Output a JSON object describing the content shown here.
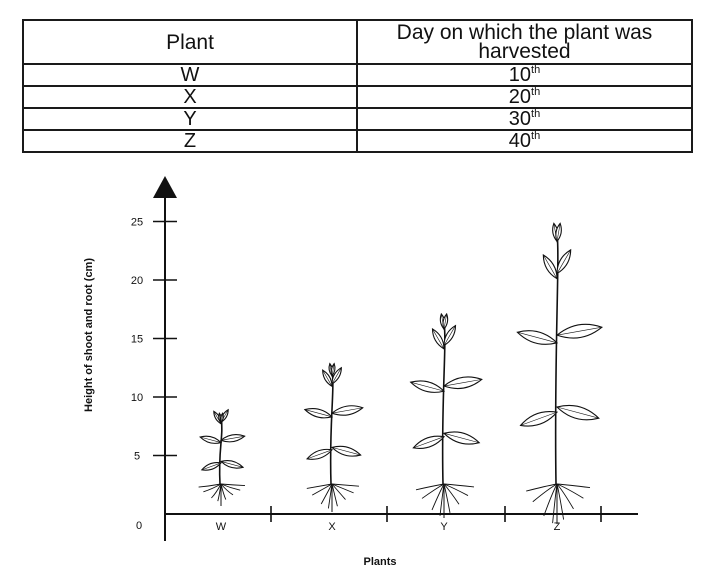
{
  "table": {
    "headers": [
      "Plant",
      "Day on which the plant was harvested"
    ],
    "rows": [
      {
        "plant": "W",
        "day_num": "10",
        "day_sup": "th"
      },
      {
        "plant": "X",
        "day_num": "20",
        "day_sup": "th"
      },
      {
        "plant": "Y",
        "day_num": "30",
        "day_sup": "th"
      },
      {
        "plant": "Z",
        "day_num": "40",
        "day_sup": "th"
      }
    ]
  },
  "figure": {
    "ylabel": "Height of shoot and root (cm)",
    "xlabel": "Plants",
    "origin_label": "0",
    "y_ticks": [
      5,
      10,
      15,
      20,
      25
    ],
    "ylim": [
      0,
      28
    ],
    "categories": [
      "W",
      "X",
      "Y",
      "Z"
    ],
    "plant_heights_cm": [
      9,
      13,
      17,
      24.5
    ]
  }
}
